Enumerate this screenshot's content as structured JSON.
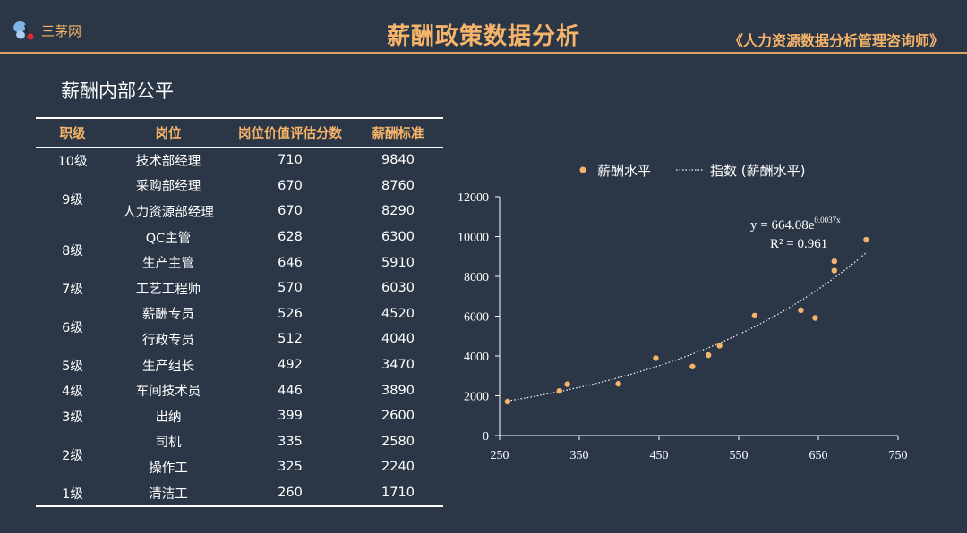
{
  "header": {
    "logo_text": "三茅网",
    "title": "薪酬政策数据分析",
    "subtitle": "《人力资源数据分析管理咨询师》"
  },
  "section_title": "薪酬内部公平",
  "table": {
    "headers": [
      "职级",
      "岗位",
      "岗位价值评估分数",
      "薪酬标准"
    ],
    "rows": [
      {
        "grade": "10级",
        "span": 1,
        "position": "技术部经理",
        "score": "710",
        "salary": "9840"
      },
      {
        "grade": "9级",
        "span": 2,
        "position": "采购部经理",
        "score": "670",
        "salary": "8760"
      },
      {
        "grade": "",
        "span": 0,
        "position": "人力资源部经理",
        "score": "670",
        "salary": "8290"
      },
      {
        "grade": "8级",
        "span": 2,
        "position": "QC主管",
        "score": "628",
        "salary": "6300"
      },
      {
        "grade": "",
        "span": 0,
        "position": "生产主管",
        "score": "646",
        "salary": "5910"
      },
      {
        "grade": "7级",
        "span": 1,
        "position": "工艺工程师",
        "score": "570",
        "salary": "6030"
      },
      {
        "grade": "6级",
        "span": 2,
        "position": "薪酬专员",
        "score": "526",
        "salary": "4520"
      },
      {
        "grade": "",
        "span": 0,
        "position": "行政专员",
        "score": "512",
        "salary": "4040"
      },
      {
        "grade": "5级",
        "span": 1,
        "position": "生产组长",
        "score": "492",
        "salary": "3470"
      },
      {
        "grade": "4级",
        "span": 1,
        "position": "车间技术员",
        "score": "446",
        "salary": "3890"
      },
      {
        "grade": "3级",
        "span": 1,
        "position": "出纳",
        "score": "399",
        "salary": "2600"
      },
      {
        "grade": "2级",
        "span": 2,
        "position": "司机",
        "score": "335",
        "salary": "2580"
      },
      {
        "grade": "",
        "span": 0,
        "position": "操作工",
        "score": "325",
        "salary": "2240"
      },
      {
        "grade": "1级",
        "span": 1,
        "position": "清洁工",
        "score": "260",
        "salary": "1710"
      }
    ]
  },
  "chart_data": {
    "type": "scatter",
    "legend": {
      "series_label": "薪酬水平",
      "trend_label": "指数 (薪酬水平)",
      "placement": "top"
    },
    "series": [
      {
        "name": "薪酬水平",
        "color": "#f5b46a",
        "x": [
          710,
          670,
          670,
          628,
          646,
          570,
          526,
          512,
          492,
          446,
          399,
          335,
          325,
          260
        ],
        "y": [
          9840,
          8760,
          8290,
          6300,
          5910,
          6030,
          4520,
          4040,
          3470,
          3890,
          2600,
          2580,
          2240,
          1710
        ]
      }
    ],
    "trendline": {
      "type": "exponential",
      "a": 664.08,
      "b": 0.0037,
      "equation_prefix": "y = 664.08e",
      "equation_exp": "0.0037x",
      "r2_label": "R² = 0.961"
    },
    "xlim": [
      250,
      750
    ],
    "xticks": [
      250,
      350,
      450,
      550,
      650,
      750
    ],
    "ylim": [
      0,
      12000
    ],
    "yticks": [
      0,
      2000,
      4000,
      6000,
      8000,
      10000,
      12000
    ],
    "grid": false
  }
}
